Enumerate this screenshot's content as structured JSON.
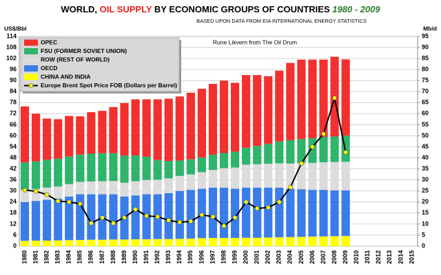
{
  "chart_data": {
    "type": "stacked_bar_line",
    "title": [
      "WORLD, ",
      "OIL SUPPLY",
      " BY ECONOMIC GROUPS OF COUNTRIES ",
      "1980 - 2009"
    ],
    "subtitle": "BASED UPON DATA FROM EIA INTERNATIONAL ENERGY STATISTICS",
    "annotation": "Rune Likvern from The Oil Drum",
    "y_label": "US$/Bbl",
    "y2_label": "Mb/d",
    "categories": [
      "1980",
      "1981",
      "1982",
      "1983",
      "1984",
      "1985",
      "1986",
      "1987",
      "1988",
      "1989",
      "1990",
      "1991",
      "1992",
      "1993",
      "1994",
      "1995",
      "1996",
      "1997",
      "1998",
      "1999",
      "2000",
      "2001",
      "2002",
      "2003",
      "2004",
      "2005",
      "2006",
      "2007",
      "2008",
      "2009",
      "2010",
      "2011",
      "2012",
      "2013",
      "2014",
      "2015"
    ],
    "ylim": [
      0,
      114
    ],
    "yticks": [
      0,
      6,
      12,
      18,
      24,
      30,
      36,
      42,
      48,
      54,
      60,
      66,
      72,
      78,
      84,
      90,
      96,
      102,
      108,
      114
    ],
    "y2lim": [
      0,
      95
    ],
    "y2ticks": [
      0,
      5,
      10,
      15,
      20,
      25,
      30,
      35,
      40,
      45,
      50,
      55,
      60,
      65,
      70,
      75,
      80,
      85,
      90,
      95
    ],
    "grid": true,
    "series": [
      {
        "name": "CHINA AND INDIA",
        "color": "#ffff00",
        "axis": "y2",
        "values": [
          2.4,
          2.5,
          2.5,
          2.6,
          2.7,
          2.8,
          2.9,
          2.9,
          3.0,
          3.0,
          3.1,
          3.1,
          3.2,
          3.2,
          3.3,
          3.4,
          3.6,
          3.7,
          3.7,
          3.7,
          3.8,
          3.8,
          3.9,
          4.0,
          4.1,
          4.2,
          4.3,
          4.4,
          4.5,
          4.6,
          null,
          null,
          null,
          null,
          null,
          null
        ]
      },
      {
        "name": "OECD",
        "color": "#3b7de8",
        "axis": "y2",
        "values": [
          17.6,
          18.0,
          18.5,
          18.9,
          19.8,
          20.7,
          20.6,
          20.6,
          20.5,
          19.5,
          19.9,
          20.4,
          20.3,
          20.8,
          21.7,
          22.1,
          22.4,
          22.8,
          22.8,
          22.3,
          22.7,
          22.7,
          22.6,
          22.5,
          21.9,
          21.6,
          21.2,
          21.1,
          20.8,
          20.7,
          null,
          null,
          null,
          null,
          null,
          null
        ]
      },
      {
        "name": "ROW (REST OF WORLD)",
        "color": "#dcdcdc",
        "axis": "y2",
        "values": [
          5.4,
          5.4,
          5.5,
          5.5,
          5.6,
          5.6,
          5.8,
          5.9,
          6.0,
          6.2,
          6.4,
          6.5,
          6.6,
          6.7,
          6.8,
          7.0,
          7.5,
          8.0,
          8.8,
          9.6,
          10.4,
          10.6,
          10.8,
          11.0,
          11.4,
          11.8,
          12.2,
          12.5,
          12.8,
          12.9,
          null,
          null,
          null,
          null,
          null,
          null
        ]
      },
      {
        "name": "FSU (FORMER SOVIET UNION)",
        "color": "#2fb46c",
        "axis": "y2",
        "values": [
          12.5,
          12.5,
          12.6,
          12.6,
          12.5,
          12.4,
          12.6,
          12.7,
          12.6,
          12.3,
          11.7,
          10.5,
          8.9,
          7.9,
          7.0,
          6.8,
          6.7,
          6.9,
          6.9,
          7.2,
          7.7,
          8.3,
          9.0,
          9.9,
          10.6,
          10.9,
          11.2,
          11.5,
          11.6,
          11.9,
          null,
          null,
          null,
          null,
          null,
          null
        ]
      },
      {
        "name": "OPEC",
        "color": "#f2302e",
        "axis": "y2",
        "values": [
          25.4,
          21.6,
          18.7,
          17.9,
          18.4,
          17.3,
          18.8,
          19.2,
          20.9,
          23.8,
          25.4,
          26.0,
          27.5,
          28.2,
          29.0,
          30.2,
          31.1,
          32.1,
          32.8,
          31.2,
          32.9,
          32.1,
          30.7,
          32.1,
          35.0,
          36.0,
          35.6,
          35.0,
          36.1,
          34.5,
          null,
          null,
          null,
          null,
          null,
          null
        ]
      }
    ],
    "line": {
      "name": "Europe Brent Spot Price FOB (Dollars per Barrel)",
      "color": "#000000",
      "marker_color": "#ffff00",
      "axis": "y",
      "values": [
        30.5,
        29.8,
        28,
        24.5,
        24,
        23,
        12.5,
        15.5,
        12.5,
        15.5,
        20,
        16.5,
        16,
        14,
        13,
        13.5,
        17,
        16,
        11,
        15.5,
        24,
        20.5,
        21,
        24,
        32,
        45,
        54,
        61,
        80.5,
        51,
        null,
        null,
        null,
        null,
        null,
        null
      ]
    }
  }
}
